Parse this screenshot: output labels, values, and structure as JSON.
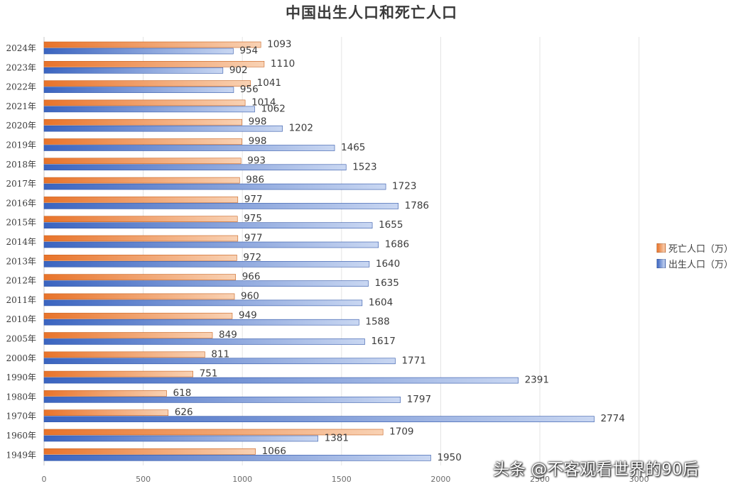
{
  "chart_data": {
    "type": "bar",
    "orientation": "horizontal",
    "title": "中国出生人口和死亡人口",
    "categories": [
      "2024年",
      "2023年",
      "2022年",
      "2021年",
      "2020年",
      "2019年",
      "2018年",
      "2017年",
      "2016年",
      "2015年",
      "2014年",
      "2013年",
      "2012年",
      "2011年",
      "2010年",
      "2005年",
      "2000年",
      "1990年",
      "1980年",
      "1970年",
      "1960年",
      "1949年"
    ],
    "series": [
      {
        "name": "死亡人口（万）",
        "color": "#ED7D31",
        "values": [
          1093,
          1110,
          1041,
          1014,
          998,
          998,
          993,
          986,
          977,
          975,
          977,
          972,
          966,
          960,
          949,
          849,
          811,
          751,
          618,
          626,
          1709,
          1066
        ]
      },
      {
        "name": "出生人口（万）",
        "color": "#4472C4",
        "values": [
          954,
          902,
          956,
          1062,
          1202,
          1465,
          1523,
          1723,
          1786,
          1655,
          1686,
          1640,
          1635,
          1604,
          1588,
          1617,
          1771,
          2391,
          1797,
          2774,
          1381,
          1950
        ]
      }
    ],
    "x_ticks": [
      "0",
      "500",
      "1000",
      "1500",
      "2000",
      "2500",
      "3000"
    ],
    "xlim": [
      0,
      3000
    ],
    "grid": true,
    "legend": "right"
  },
  "watermark": "头条 @不客观看世界的90后"
}
